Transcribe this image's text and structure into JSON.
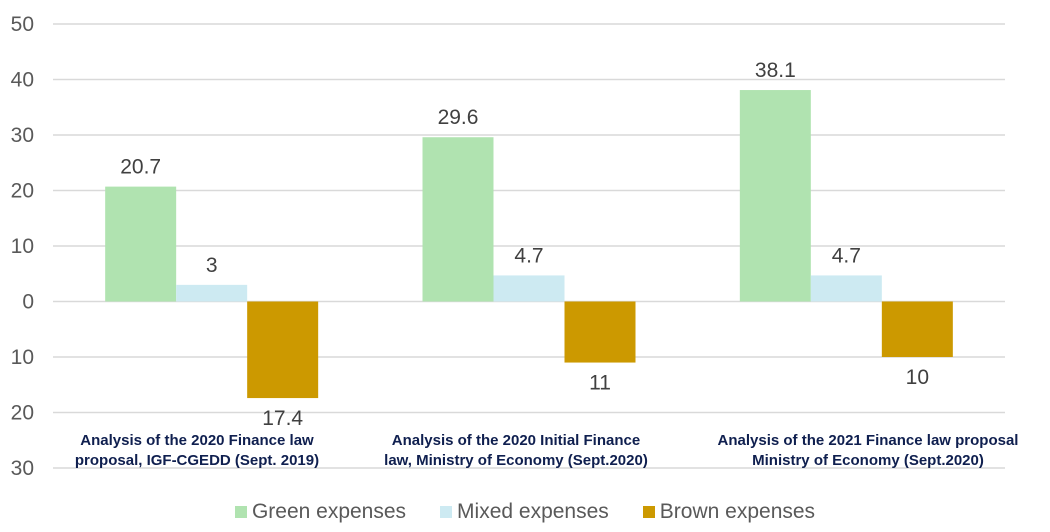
{
  "chart_data": {
    "type": "bar",
    "title": "",
    "xlabel": "",
    "ylabel": "",
    "ylim": [
      -30,
      50
    ],
    "yticks": [
      50,
      40,
      30,
      20,
      10,
      0,
      -10,
      -20,
      -30
    ],
    "ytick_labels": [
      "50",
      "40",
      "30",
      "20",
      "10",
      "0",
      "10",
      "20",
      "30"
    ],
    "grid": true,
    "legend_position": "bottom",
    "categories": [
      [
        "Analysis of the 2020 Finance law",
        "proposal, IGF-CGEDD (Sept. 2019)"
      ],
      [
        "Analysis of the 2020 Initial Finance",
        "law, Ministry of Economy (Sept.2020)"
      ],
      [
        "Analysis of the 2021 Finance law proposal",
        "Ministry of Economy (Sept.2020)"
      ]
    ],
    "series": [
      {
        "name": "Green expenses",
        "color": "#b0e3b0",
        "values": [
          20.7,
          29.6,
          38.1
        ],
        "labels": [
          "20.7",
          "29.6",
          "38.1"
        ]
      },
      {
        "name": "Mixed expenses",
        "color": "#cdeaf2",
        "values": [
          3,
          4.7,
          4.7
        ],
        "labels": [
          "3",
          "4.7",
          "4.7"
        ]
      },
      {
        "name": "Brown expenses",
        "color": "#cc9900",
        "values": [
          -17.4,
          -11,
          -10
        ],
        "labels": [
          "17.4",
          "11",
          "10"
        ]
      }
    ]
  },
  "legend": {
    "items": [
      {
        "label": "Green expenses",
        "color": "#b0e3b0"
      },
      {
        "label": "Mixed expenses",
        "color": "#cdeaf2"
      },
      {
        "label": "Brown expenses",
        "color": "#cc9900"
      }
    ]
  }
}
